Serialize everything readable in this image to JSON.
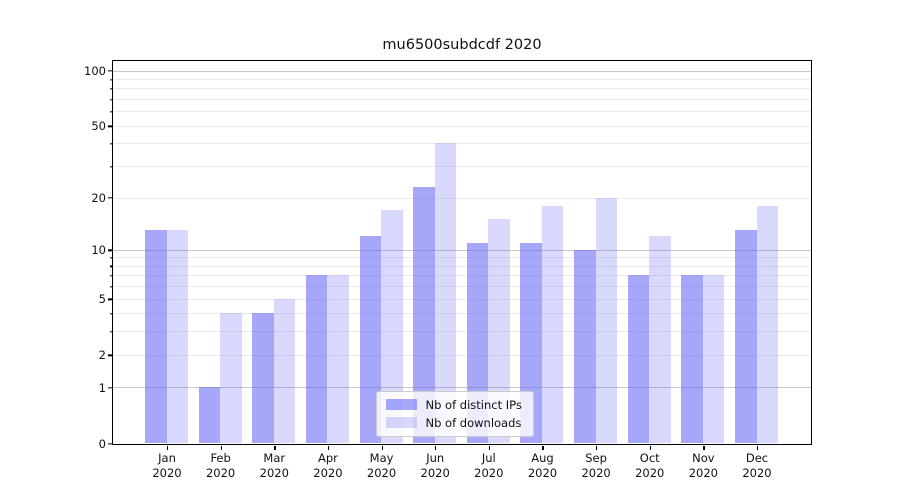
{
  "chart_data": {
    "type": "bar",
    "title": "mu6500subdcdf 2020",
    "categories": [
      {
        "month": "Jan",
        "year": "2020"
      },
      {
        "month": "Feb",
        "year": "2020"
      },
      {
        "month": "Mar",
        "year": "2020"
      },
      {
        "month": "Apr",
        "year": "2020"
      },
      {
        "month": "May",
        "year": "2020"
      },
      {
        "month": "Jun",
        "year": "2020"
      },
      {
        "month": "Jul",
        "year": "2020"
      },
      {
        "month": "Aug",
        "year": "2020"
      },
      {
        "month": "Sep",
        "year": "2020"
      },
      {
        "month": "Oct",
        "year": "2020"
      },
      {
        "month": "Nov",
        "year": "2020"
      },
      {
        "month": "Dec",
        "year": "2020"
      }
    ],
    "series": [
      {
        "name": "Nb of distinct IPs",
        "values": [
          13,
          1,
          4,
          7,
          12,
          23,
          11,
          11,
          10,
          7,
          7,
          13
        ],
        "color": "rgba(98,98,245,0.56)",
        "color_hex_on_white": "#a6a6f4"
      },
      {
        "name": "Nb of downloads",
        "values": [
          13,
          4,
          5,
          7,
          17,
          40,
          15,
          18,
          20,
          12,
          7,
          18
        ],
        "color": "rgba(98,98,245,0.24)",
        "color_hex_on_white": "#d9d9fa"
      }
    ],
    "xlabel": "",
    "ylabel": "",
    "yscale": "log1p",
    "ylim": [
      0,
      113.5
    ],
    "yticks": [
      100,
      50,
      20,
      10,
      5,
      2,
      1,
      0
    ],
    "major_gridlines": [
      1,
      10,
      100
    ],
    "minor_gridlines": [
      2,
      3,
      4,
      5,
      6,
      7,
      8,
      9,
      20,
      30,
      40,
      50,
      60,
      70,
      80,
      90
    ],
    "grid": true,
    "legend_position": "lower center"
  },
  "colors": {
    "grid_major": "#c8c8c8",
    "grid_minor": "#ebebeb",
    "spine": "#000000",
    "text": "#111111",
    "legend_border": "#cccccc"
  }
}
